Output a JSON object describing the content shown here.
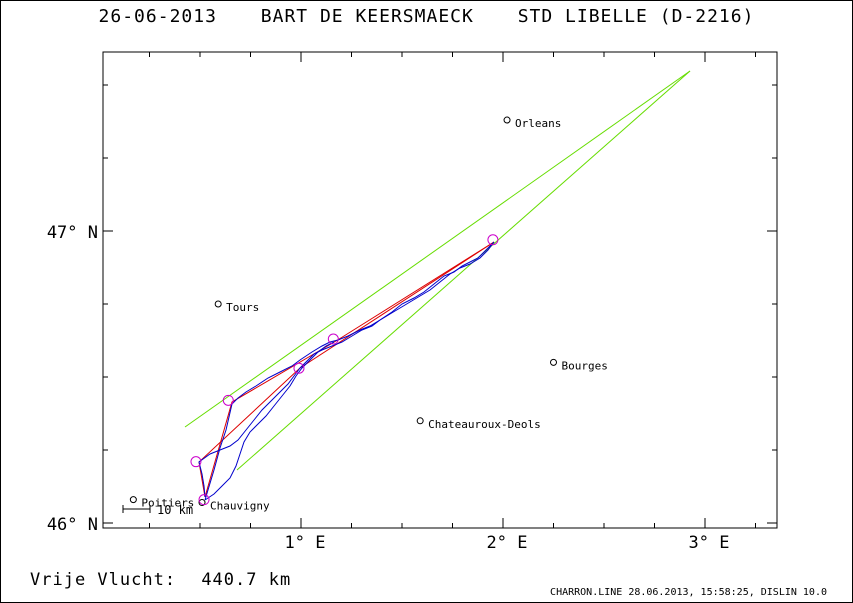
{
  "header": {
    "date": "26-06-2013",
    "pilot": "BART DE KEERSMAECK",
    "glider": "STD LIBELLE (D-2216)"
  },
  "map": {
    "lat_labels": [
      {
        "text": "47° N",
        "lat": 47.0
      },
      {
        "text": "46° N",
        "lat": 46.0
      }
    ],
    "lon_labels": [
      {
        "text": "1° E",
        "lon": 1.0
      },
      {
        "text": "2° E",
        "lon": 2.0
      },
      {
        "text": "3° E",
        "lon": 3.0
      }
    ],
    "scale_label": "10 km",
    "cities": [
      {
        "name": "Orleans",
        "lon": 2.02,
        "lat": 47.38
      },
      {
        "name": "Tours",
        "lon": 0.59,
        "lat": 46.75
      },
      {
        "name": "Bourges",
        "lon": 2.25,
        "lat": 46.55
      },
      {
        "name": "Chateauroux-Deols",
        "lon": 1.59,
        "lat": 46.35
      },
      {
        "name": "Poitiers",
        "lon": 0.17,
        "lat": 46.08
      },
      {
        "name": "Chauvigny",
        "lon": 0.51,
        "lat": 46.07
      }
    ],
    "turnpoints": [
      {
        "lon": 0.52,
        "lat": 46.08
      },
      {
        "lon": 0.64,
        "lat": 46.42
      },
      {
        "lon": 1.16,
        "lat": 46.63
      },
      {
        "lon": 1.95,
        "lat": 46.97
      },
      {
        "lon": 0.48,
        "lat": 46.21
      },
      {
        "lon": 0.99,
        "lat": 46.53
      }
    ],
    "colors": {
      "track": "#0000cc",
      "task": "#dd0000",
      "sector": "#66dd00",
      "turnpoint": "#cc00cc",
      "grid": "#000000"
    }
  },
  "footer": {
    "distance_label": "Vrije Vlucht:",
    "distance_value": "440.7 km",
    "program_info": "CHARRON.LINE 28.06.2013, 15:58:25, DISLIN 10.0"
  }
}
